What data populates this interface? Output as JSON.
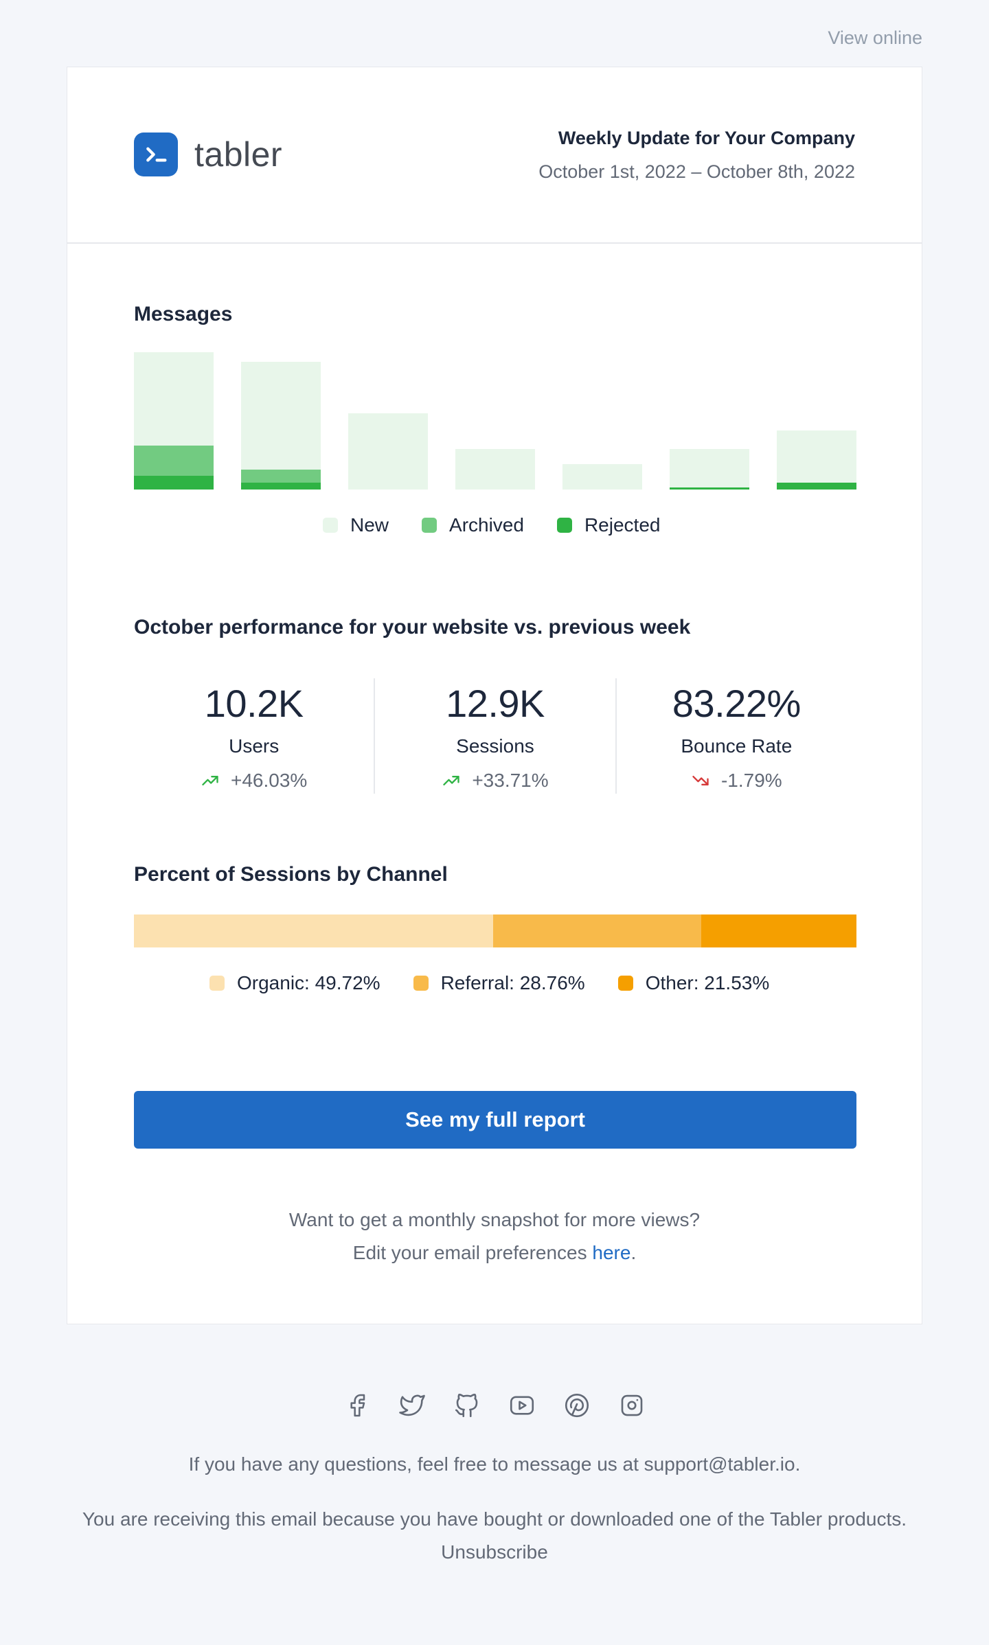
{
  "view_online": "View online",
  "header": {
    "brand": "tabler",
    "title": "Weekly Update for Your Company",
    "date_range": "October 1st, 2022 – October 8th, 2022"
  },
  "messages": {
    "title": "Messages",
    "legend": [
      {
        "label": "New",
        "color": "#e8f6ea"
      },
      {
        "label": "Archived",
        "color": "#72cb81"
      },
      {
        "label": "Rejected",
        "color": "#2fb344"
      }
    ]
  },
  "chart_data": {
    "type": "bar",
    "stacked": true,
    "title": "Messages",
    "categories": [
      "",
      "",
      "",
      "",
      "",
      "",
      ""
    ],
    "series": [
      {
        "name": "Rejected",
        "color": "#2fb344",
        "values": [
          20,
          10,
          0,
          0,
          0,
          3,
          10
        ]
      },
      {
        "name": "Archived",
        "color": "#72cb81",
        "values": [
          44,
          19,
          0,
          0,
          0,
          0,
          0
        ]
      },
      {
        "name": "New",
        "color": "#e8f6ea",
        "values": [
          136,
          157,
          111,
          59,
          37,
          56,
          76
        ]
      }
    ],
    "ylim": [
      0,
      200
    ],
    "grid": false,
    "legend_position": "bottom-center"
  },
  "performance": {
    "title": "October performance for your website vs. previous week",
    "stats": [
      {
        "value": "10.2K",
        "label": "Users",
        "change": "+46.03%",
        "trend": "up"
      },
      {
        "value": "12.9K",
        "label": "Sessions",
        "change": "+33.71%",
        "trend": "up"
      },
      {
        "value": "83.22%",
        "label": "Bounce Rate",
        "change": "-1.79%",
        "trend": "down"
      }
    ],
    "colors": {
      "up": "#2fb344",
      "down": "#d63939"
    }
  },
  "channels": {
    "title": "Percent of Sessions by Channel",
    "items": [
      {
        "label": "Organic: 49.72%",
        "percent": 49.72,
        "color": "#fce1b0"
      },
      {
        "label": "Referral: 28.76%",
        "percent": 28.76,
        "color": "#f8ba4a"
      },
      {
        "label": "Other: 21.53%",
        "percent": 21.53,
        "color": "#f59f00"
      }
    ]
  },
  "cta": {
    "label": "See my full report"
  },
  "snapshot_note": {
    "line1": "Want to get a monthly snapshot for more views?",
    "line2_prefix": "Edit your email preferences ",
    "line2_link": "here",
    "line2_suffix": "."
  },
  "footer": {
    "social_icons": [
      "facebook-icon",
      "twitter-icon",
      "github-icon",
      "youtube-icon",
      "pinterest-icon",
      "instagram-icon"
    ],
    "questions": "If you have any questions, feel free to message us at support@tabler.io.",
    "receiving": "You are receiving this email because you have bought or downloaded one of the Tabler products.",
    "unsubscribe": "Unsubscribe"
  }
}
